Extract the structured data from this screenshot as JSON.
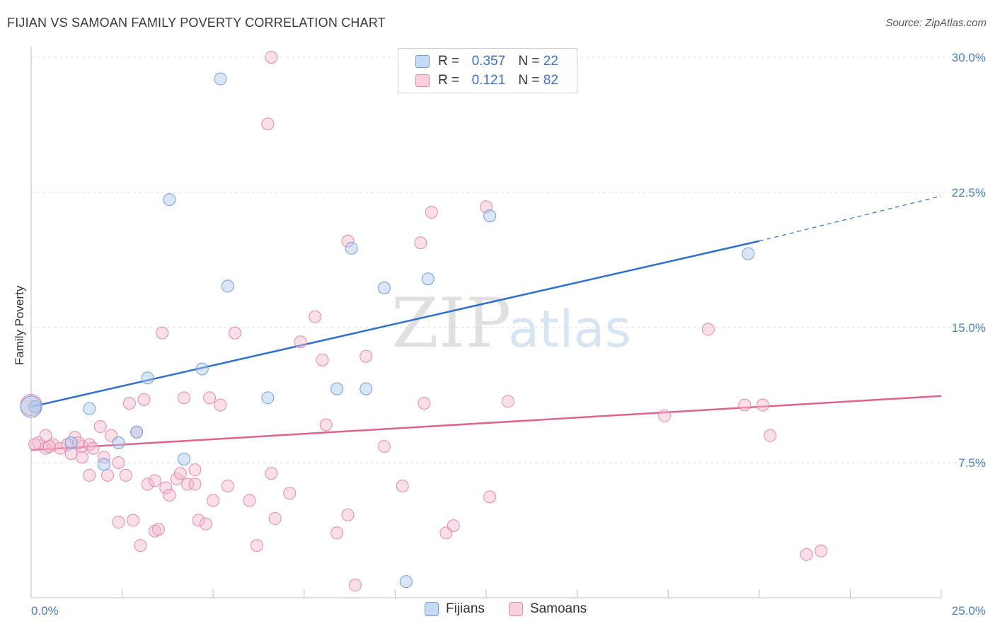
{
  "header": {
    "title": "FIJIAN VS SAMOAN FAMILY POVERTY CORRELATION CHART",
    "source": "Source: ZipAtlas.com"
  },
  "legend": {
    "rows": [
      {
        "r_label": "R =",
        "r_value": "0.357",
        "n_label": "N =",
        "n_value": "22",
        "color": "#a9c8ee"
      },
      {
        "r_label": "R =",
        "r_value": "0.121",
        "n_label": "N =",
        "n_value": "82",
        "color": "#f5b9cb"
      }
    ],
    "bottom": [
      {
        "label": "Fijians",
        "color": "#a9c8ee"
      },
      {
        "label": "Samoans",
        "color": "#f5b9cb"
      }
    ]
  },
  "watermark": {
    "zip": "ZIP",
    "atlas": "atlas"
  },
  "chart_data": {
    "type": "scatter",
    "title": "FIJIAN VS SAMOAN FAMILY POVERTY CORRELATION CHART",
    "ylabel": "Family Poverty",
    "xlim": [
      0,
      25
    ],
    "ylim": [
      0,
      30
    ],
    "x_tick_labels": [
      "0.0%",
      "25.0%"
    ],
    "y_ticks": [
      {
        "value": 7.5,
        "label": "7.5%"
      },
      {
        "value": 15.0,
        "label": "15.0%"
      },
      {
        "value": 22.5,
        "label": "22.5%"
      },
      {
        "value": 30.0,
        "label": "30.0%"
      }
    ],
    "grid": "horizontal dashed",
    "legend_position": "top-center",
    "series": [
      {
        "name": "Fijians",
        "color": "#a9c8ee",
        "edge_color": "#6f9fd8",
        "line_color": "#2f6fd0",
        "trend": {
          "x0": 0.0,
          "y0": 10.6,
          "x1": 20.0,
          "y1": 19.8,
          "x_ext": 25.0,
          "y_ext": 22.3
        },
        "points": [
          [
            0.1,
            10.6
          ],
          [
            1.6,
            10.5
          ],
          [
            1.1,
            8.6
          ],
          [
            2.4,
            8.6
          ],
          [
            2.0,
            7.4
          ],
          [
            2.9,
            9.2
          ],
          [
            3.2,
            12.2
          ],
          [
            3.8,
            22.1
          ],
          [
            4.2,
            7.7
          ],
          [
            4.7,
            12.7
          ],
          [
            5.2,
            28.8
          ],
          [
            5.4,
            17.3
          ],
          [
            6.5,
            11.1
          ],
          [
            8.4,
            11.6
          ],
          [
            8.8,
            19.4
          ],
          [
            9.2,
            11.6
          ],
          [
            9.7,
            17.2
          ],
          [
            10.3,
            0.9
          ],
          [
            10.9,
            17.7
          ],
          [
            12.6,
            21.2
          ],
          [
            19.7,
            19.1
          ],
          [
            0.0,
            10.6
          ]
        ]
      },
      {
        "name": "Samoans",
        "color": "#f5b9cb",
        "edge_color": "#e58aa6",
        "line_color": "#e0628e",
        "trend": {
          "x0": 0.0,
          "y0": 8.2,
          "x1": 25.0,
          "y1": 11.2
        },
        "points": [
          [
            0.0,
            10.7
          ],
          [
            0.2,
            8.6
          ],
          [
            0.4,
            8.3
          ],
          [
            0.4,
            9.0
          ],
          [
            0.6,
            8.5
          ],
          [
            0.8,
            8.3
          ],
          [
            1.0,
            8.5
          ],
          [
            1.1,
            8.0
          ],
          [
            1.2,
            8.9
          ],
          [
            1.4,
            8.4
          ],
          [
            1.4,
            7.8
          ],
          [
            1.6,
            8.5
          ],
          [
            1.6,
            6.8
          ],
          [
            1.7,
            8.3
          ],
          [
            1.9,
            9.5
          ],
          [
            2.0,
            7.8
          ],
          [
            2.1,
            6.8
          ],
          [
            2.2,
            9.0
          ],
          [
            2.4,
            7.5
          ],
          [
            2.4,
            4.2
          ],
          [
            2.6,
            6.8
          ],
          [
            2.7,
            10.8
          ],
          [
            2.8,
            4.3
          ],
          [
            2.9,
            9.2
          ],
          [
            3.0,
            2.9
          ],
          [
            3.1,
            11.0
          ],
          [
            3.2,
            6.3
          ],
          [
            3.4,
            6.5
          ],
          [
            3.4,
            3.7
          ],
          [
            3.5,
            3.8
          ],
          [
            3.6,
            14.7
          ],
          [
            3.7,
            6.1
          ],
          [
            3.8,
            5.7
          ],
          [
            4.0,
            6.6
          ],
          [
            4.1,
            6.9
          ],
          [
            4.2,
            11.1
          ],
          [
            4.3,
            6.3
          ],
          [
            4.5,
            7.1
          ],
          [
            4.5,
            6.3
          ],
          [
            4.6,
            4.3
          ],
          [
            4.8,
            4.1
          ],
          [
            4.9,
            11.1
          ],
          [
            5.0,
            5.4
          ],
          [
            5.2,
            10.7
          ],
          [
            5.4,
            6.2
          ],
          [
            5.6,
            14.7
          ],
          [
            6.0,
            5.4
          ],
          [
            6.2,
            2.9
          ],
          [
            6.5,
            26.3
          ],
          [
            6.6,
            30.0
          ],
          [
            6.6,
            6.9
          ],
          [
            6.7,
            4.4
          ],
          [
            7.1,
            5.8
          ],
          [
            7.4,
            14.2
          ],
          [
            7.8,
            15.6
          ],
          [
            8.0,
            13.2
          ],
          [
            8.1,
            9.6
          ],
          [
            8.4,
            3.6
          ],
          [
            8.7,
            4.6
          ],
          [
            8.7,
            19.8
          ],
          [
            8.9,
            0.7
          ],
          [
            9.2,
            13.4
          ],
          [
            9.7,
            8.4
          ],
          [
            10.2,
            6.2
          ],
          [
            10.7,
            19.7
          ],
          [
            10.8,
            10.8
          ],
          [
            11.0,
            21.4
          ],
          [
            11.4,
            3.6
          ],
          [
            11.6,
            4.0
          ],
          [
            12.5,
            21.7
          ],
          [
            12.6,
            5.6
          ],
          [
            13.1,
            10.9
          ],
          [
            17.4,
            10.1
          ],
          [
            18.6,
            14.9
          ],
          [
            19.6,
            10.7
          ],
          [
            20.1,
            10.7
          ],
          [
            20.3,
            9.0
          ],
          [
            21.3,
            2.4
          ],
          [
            21.7,
            2.6
          ],
          [
            0.1,
            8.5
          ],
          [
            0.5,
            8.4
          ],
          [
            1.3,
            8.6
          ]
        ]
      }
    ]
  }
}
